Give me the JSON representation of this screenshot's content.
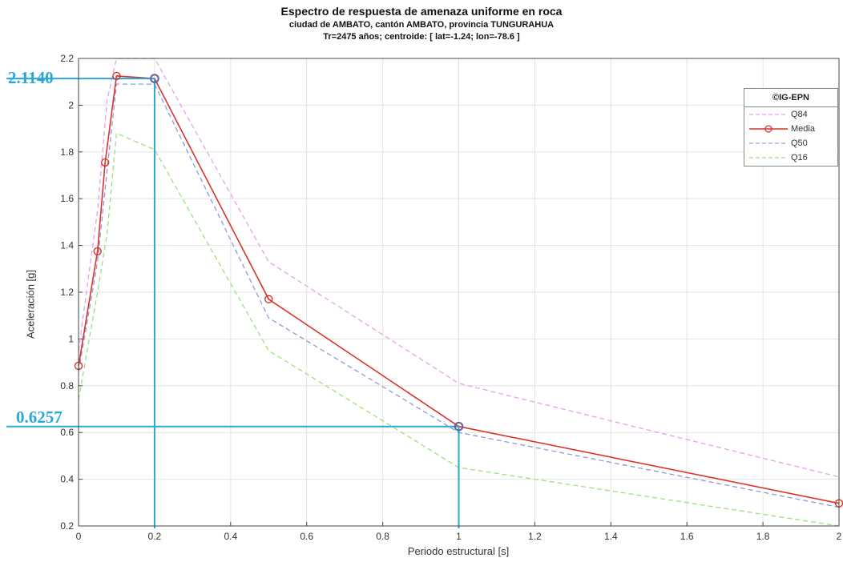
{
  "chart_data": {
    "type": "line",
    "title": "Espectro de respuesta de amenaza uniforme en roca",
    "subtitle_1": "ciudad de AMBATO,  cantón  AMBATO,  provincia  TUNGURAHUA",
    "subtitle_2": "Tr=2475 años; centroide:  [ lat=-1.24;  lon=-78.6 ]",
    "xlabel": "Periodo estructural [s]",
    "ylabel": "Aceleración [g]",
    "xlim": [
      0,
      2
    ],
    "ylim": [
      0.2,
      2.2
    ],
    "xticks": [
      0,
      0.2,
      0.4,
      0.6,
      0.8,
      1,
      1.2,
      1.4,
      1.6,
      1.8,
      2
    ],
    "xtick_labels": [
      "0",
      "0.2",
      "0.4",
      "0.6",
      "0.8",
      "1",
      "1.2",
      "1.4",
      "1.6",
      "1.8",
      "2"
    ],
    "yticks": [
      0.2,
      0.4,
      0.6,
      0.8,
      1,
      1.2,
      1.4,
      1.6,
      1.8,
      2,
      2.2
    ],
    "ytick_labels": [
      "0.2",
      "0.4",
      "0.6",
      "0.8",
      "1",
      "1.2",
      "1.4",
      "1.6",
      "1.8",
      "2",
      "2.2"
    ],
    "grid": true,
    "legend": {
      "header": "©IG-EPN",
      "position": "top-right",
      "entries": [
        "Q84",
        "Media",
        "Q50",
        "Q16"
      ]
    },
    "series": [
      {
        "name": "Q84",
        "color": "#E8A0E8",
        "style": "dashed",
        "x": [
          0,
          0.05,
          0.075,
          0.1,
          0.2,
          0.5,
          1,
          2
        ],
        "y": [
          0.95,
          1.55,
          2.02,
          2.2,
          2.2,
          1.33,
          0.81,
          0.41
        ]
      },
      {
        "name": "Media",
        "color": "#D9342B",
        "style": "solid",
        "markers": true,
        "x": [
          0,
          0.05,
          0.07,
          0.1,
          0.2,
          0.5,
          1,
          2
        ],
        "y": [
          0.885,
          1.375,
          1.755,
          2.125,
          2.114,
          1.17,
          0.6257,
          0.297
        ]
      },
      {
        "name": "Q50",
        "color": "#8C9BD6",
        "style": "dashed",
        "x": [
          0,
          0.05,
          0.075,
          0.1,
          0.2,
          0.5,
          1,
          2
        ],
        "y": [
          0.86,
          1.33,
          1.72,
          2.09,
          2.09,
          1.09,
          0.6,
          0.28
        ]
      },
      {
        "name": "Q16",
        "color": "#9BE07E",
        "style": "dashed",
        "x": [
          0,
          0.05,
          0.075,
          0.1,
          0.2,
          0.5,
          1,
          2
        ],
        "y": [
          0.74,
          1.2,
          1.45,
          1.88,
          1.81,
          0.95,
          0.45,
          0.2
        ]
      }
    ],
    "annotations": [
      {
        "label": "2.1140",
        "x": 0.2,
        "y": 2.114,
        "color": "#2AA7D6"
      },
      {
        "label": "0.6257",
        "x": 1.0,
        "y": 0.6257,
        "color": "#2AA7D6"
      }
    ]
  }
}
